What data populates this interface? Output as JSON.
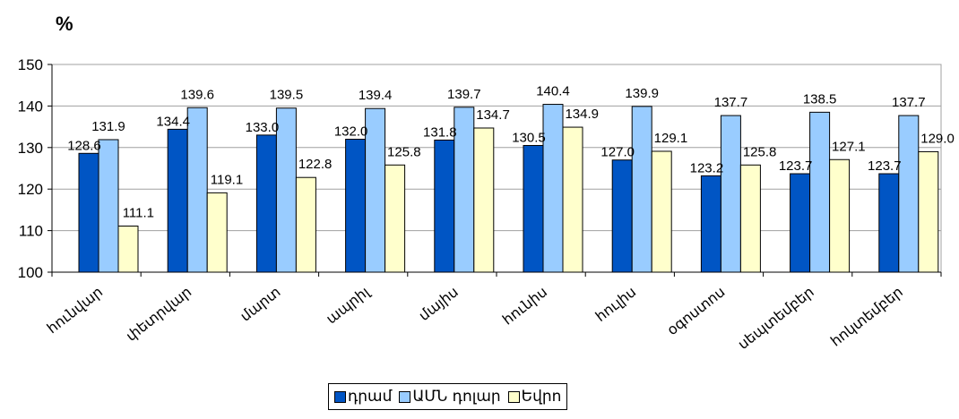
{
  "unit_label": "%",
  "chart_data": {
    "type": "bar",
    "title": "",
    "xlabel": "",
    "ylabel": "%",
    "ylim": [
      100,
      150
    ],
    "yticks": [
      100,
      110,
      120,
      130,
      140,
      150
    ],
    "grid": true,
    "legend_position": "bottom",
    "categories": [
      "հունվար",
      "փետրվար",
      "մարտ",
      "ապրիլ",
      "մայիս",
      "հունիս",
      "հուլիս",
      "օգոստոս",
      "սեպտեմբեր",
      "հոկտեմբեր"
    ],
    "series": [
      {
        "name": "դրամ",
        "color": "#0055c4",
        "values": [
          128.6,
          134.4,
          133.0,
          132.0,
          131.8,
          130.5,
          127.0,
          123.2,
          123.7,
          123.7
        ]
      },
      {
        "name": "ԱՄՆ դոլար",
        "color": "#99ccff",
        "values": [
          131.9,
          139.6,
          139.5,
          139.4,
          139.7,
          140.4,
          139.9,
          137.7,
          138.5,
          137.7
        ]
      },
      {
        "name": "Եվրո",
        "color": "#ffffcc",
        "values": [
          111.1,
          119.1,
          122.8,
          125.8,
          134.7,
          134.9,
          129.1,
          125.8,
          127.1,
          129.0
        ]
      }
    ]
  }
}
